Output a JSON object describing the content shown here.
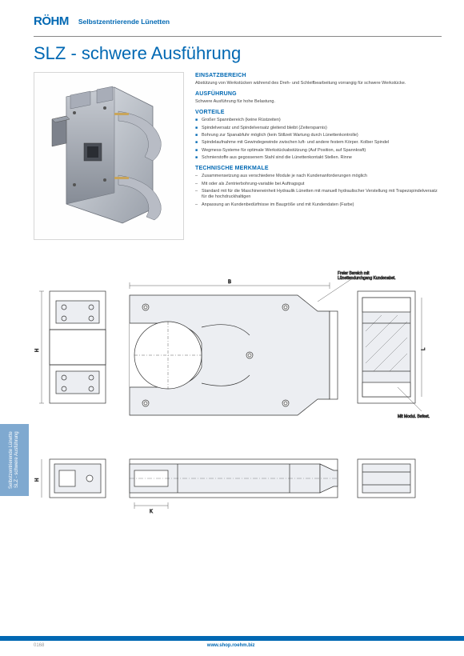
{
  "brand": "RÖHM",
  "header_subtitle": "Selbstzentrierende Lünetten",
  "title": "SLZ - schwere Ausführung",
  "sections": {
    "einsatzbereich": {
      "heading": "EINSATZBEREICH",
      "text": "Abstützung von Werkstücken während des Dreh- und Schleifbearbeitung vorrangig für schwere Werkstücke."
    },
    "ausfuehrung": {
      "heading": "AUSFÜHRUNG",
      "text": "Schwere Ausführung für hohe Belastung."
    },
    "vorteile": {
      "heading": "VORTEILE",
      "items": [
        "Großer Spannbereich (keine Rüstzeiten)",
        "Spindelversatz und Spindelversatz gleitend bleibt (Zeitersparnis)",
        "Bohrung zur Spanabfuhr möglich (kein Stillzeit Wartung durch Lünettenkontrolle)",
        "Spindelaufnahme mit Gewindegewinde zwischen luft- und andere festem Körper. Kolber Spindel",
        "Wegmess-Systeme für optimale Werkstückabstützung (Auf Position, auf Spannkraft)",
        "Schmierstoffe aus gegossenem Stahl sind die Lünettenkontakt Stellen. Rinne"
      ]
    },
    "technische": {
      "heading": "TECHNISCHE MERKMALE",
      "items": [
        "Zusammensetzung aus verschiedene Module je nach Kundenanforderungen möglich",
        "Mit oder als Zentrierbohrung-variable bei Auftragsgut",
        "Standard mit für die Maschineneinheit Hydraulik Lünetten mit manuell hydraulischer Verstellung mit Trapezspindelversatz für die hochdruckhaltigen",
        "Anpassung an Kundenbedürfnisse im Baugröße und mit Kundendaten (Farbe)"
      ]
    }
  },
  "drawing_labels": {
    "top_right": "Freier Bereich mit Lünettendurchgang Kundenabst.",
    "mid_right": "Mit Modul. Befest.",
    "dims": {
      "B": "B",
      "H": "H",
      "K": "K",
      "L": "L",
      "oE": "oE"
    }
  },
  "side_tab": "Selbstzentrierende Lünette SLZ - schwere Ausführung",
  "footer": {
    "page": "0168",
    "link": "www.shop.roehm.biz"
  },
  "colors": {
    "brand": "#0068b3",
    "tab": "#7fa9d0",
    "steel_light": "#c8ccd3",
    "steel_mid": "#a8adb8",
    "steel_dark": "#8a8f99",
    "line": "#333333"
  }
}
